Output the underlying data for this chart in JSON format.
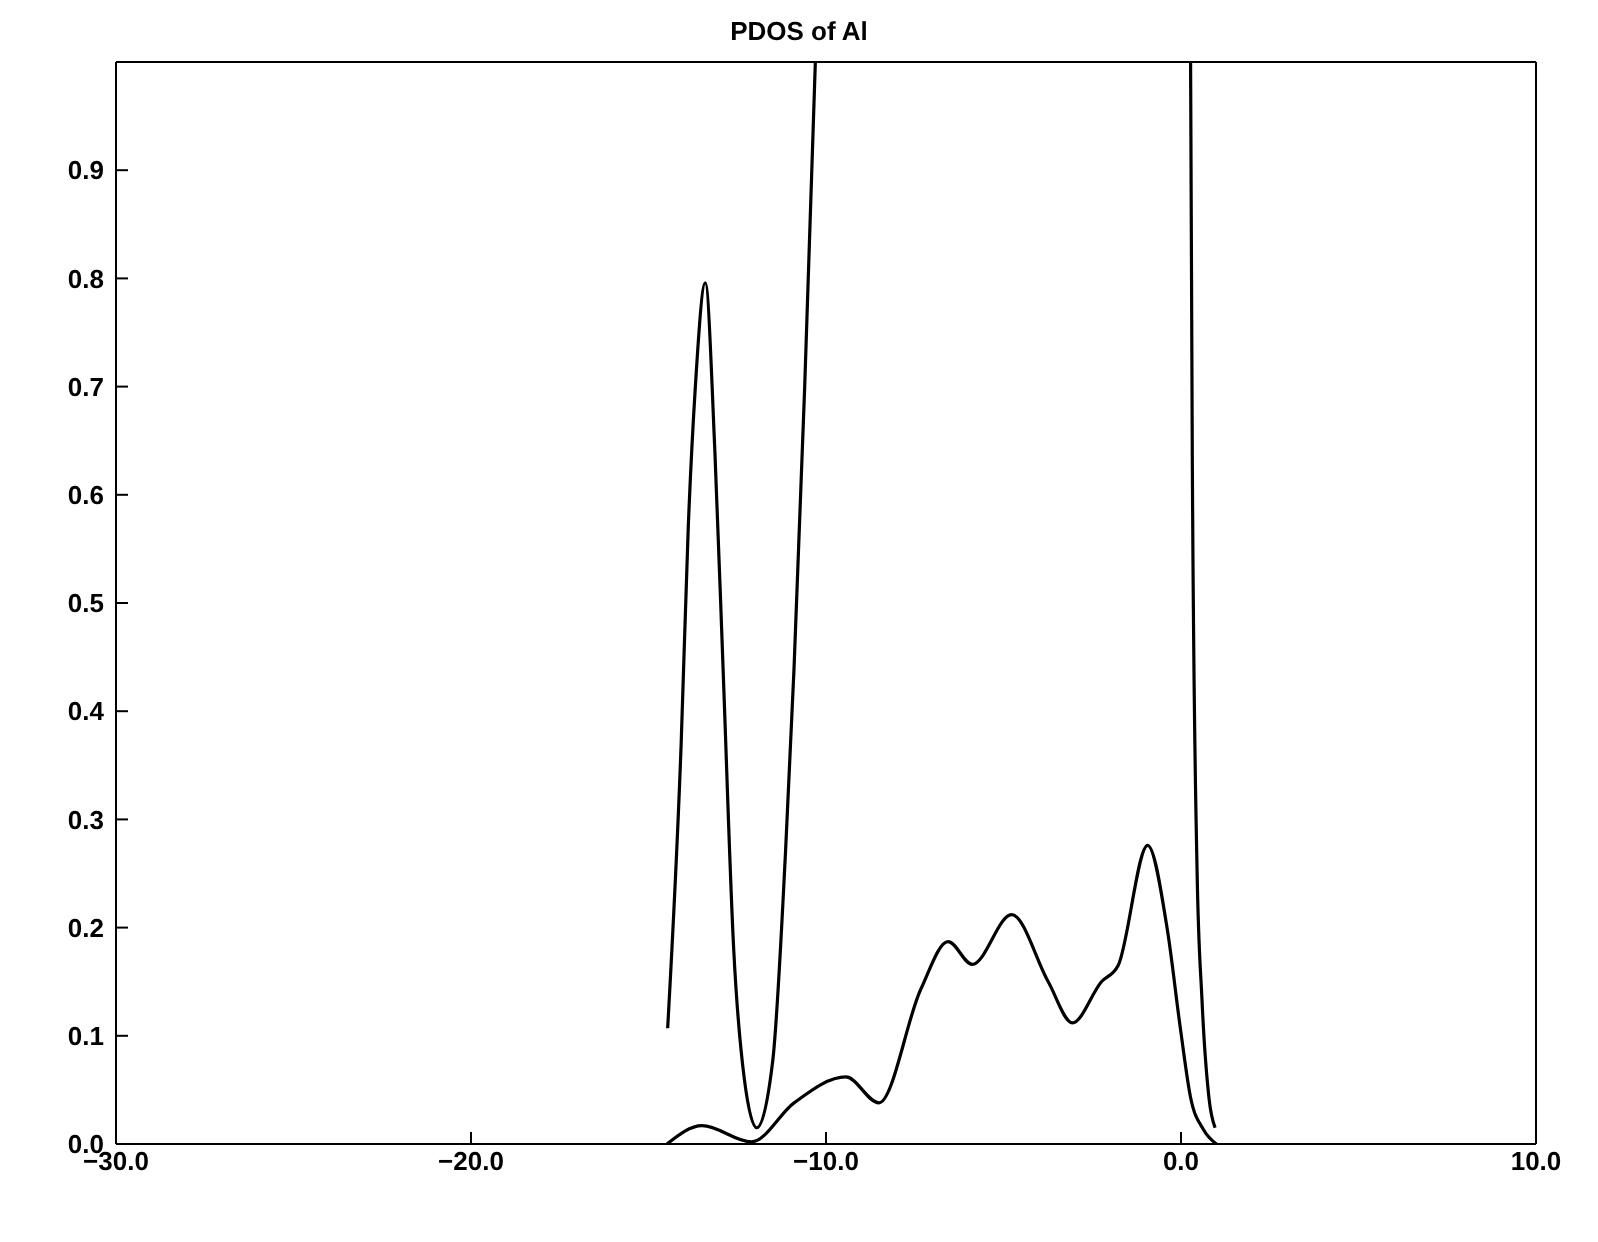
{
  "chart_data": {
    "type": "line",
    "title": "PDOS of Al",
    "xlim": [
      -30,
      10
    ],
    "xticks": [
      {
        "value": -30,
        "label": "−30.0"
      },
      {
        "value": -20,
        "label": "−20.0"
      },
      {
        "value": -10,
        "label": "−10.0"
      },
      {
        "value": 0,
        "label": "0.0"
      },
      {
        "value": 10,
        "label": "10.0"
      }
    ],
    "ylim": [
      0,
      1
    ],
    "yticks": [
      {
        "value": 0,
        "label": "0.0"
      },
      0.1,
      0.2,
      0.3,
      0.4,
      0.5,
      0.6,
      0.7,
      0.8,
      0.9
    ],
    "grid": false,
    "legend": false,
    "marker": "none",
    "line_style": "solid",
    "series": [
      {
        "color": "#000000",
        "x": [
          -14.46,
          -14.08,
          -13.88,
          -13.68,
          -13.4,
          -13.13,
          -12.9,
          -12.6,
          -12.3,
          -11.95,
          -11.5,
          -11.14,
          -10.9,
          -10.6,
          -10.3,
          -5,
          0.27,
          0.32,
          0.45,
          0.59,
          0.79,
          0.96
        ],
        "values": [
          0.107,
          0.37,
          0.57,
          0.7,
          0.796,
          0.64,
          0.44,
          0.18,
          0.06,
          0.015,
          0.077,
          0.27,
          0.44,
          0.7,
          1.0,
          null,
          1.0,
          0.625,
          0.257,
          0.134,
          0.042,
          0.015
        ]
      },
      {
        "color": "#000000",
        "x": [
          -14.48,
          -13.49,
          -12.1,
          -10.9,
          -9.44,
          -8.51,
          -7.33,
          -6.56,
          -5.88,
          -4.77,
          -3.74,
          -3.06,
          -2.24,
          -1.77,
          -0.94,
          -0.38,
          -0.01,
          0.27,
          0.64,
          1.0
        ],
        "values": [
          0,
          0.017,
          0.002,
          0.038,
          0.062,
          0.038,
          0.143,
          0.187,
          0.166,
          0.212,
          0.15,
          0.112,
          0.15,
          0.165,
          0.276,
          0.197,
          0.105,
          0.043,
          0.013,
          0
        ]
      }
    ]
  }
}
